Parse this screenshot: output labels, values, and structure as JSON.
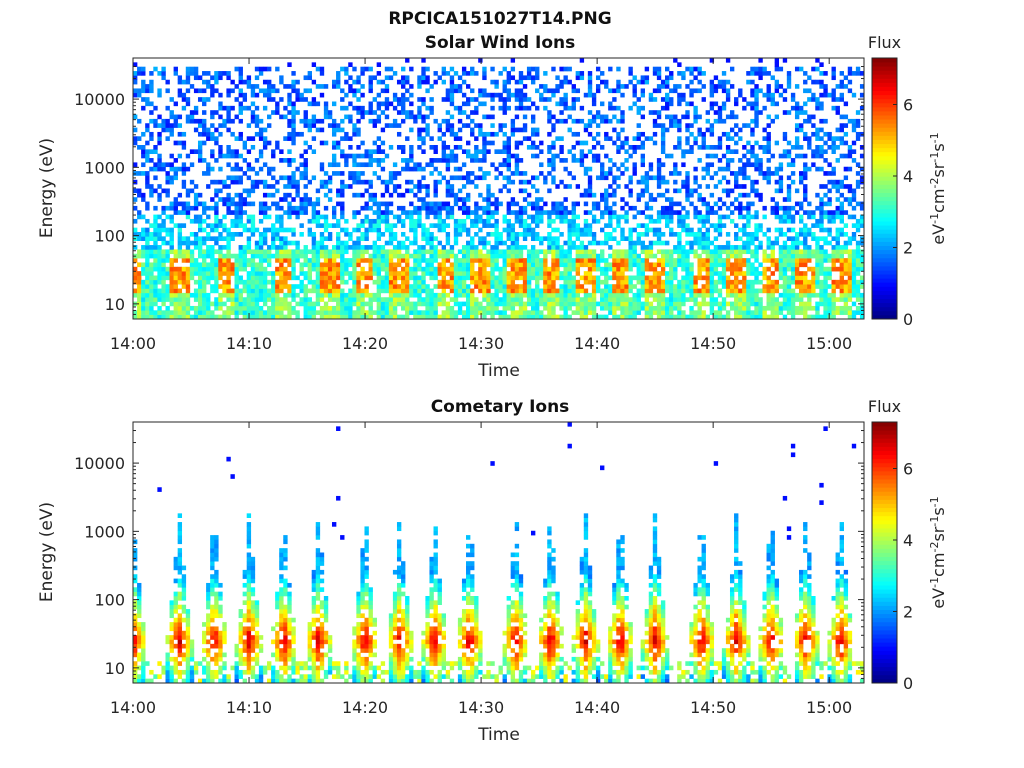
{
  "figure": {
    "title": "RPCICA151027T14.PNG"
  },
  "colorbar": {
    "label": "Flux",
    "unit_parts": [
      "eV",
      "-1",
      "cm",
      "-2",
      "sr",
      "-1",
      "s",
      "-1"
    ],
    "range": [
      0,
      7.3
    ],
    "ticks": [
      "0",
      "2",
      "4",
      "6"
    ],
    "colormap": "jet"
  },
  "chart_data": [
    {
      "type": "heatmap",
      "title": "Solar Wind Ions",
      "xlabel": "Time",
      "ylabel": "Energy (eV)",
      "x_ticks": [
        "14:00",
        "14:10",
        "14:20",
        "14:30",
        "14:40",
        "14:50",
        "15:00"
      ],
      "x_range": [
        "14:00",
        "15:03"
      ],
      "y_ticks": [
        "10",
        "100",
        "1000",
        "10000"
      ],
      "y_range": [
        6,
        40000
      ],
      "y_scale": "log",
      "description_values": {
        "low_energy_band_eV": [
          6,
          60
        ],
        "low_energy_flux_range": [
          2.5,
          5.5
        ],
        "high_energy_band_eV": [
          100,
          30000
        ],
        "high_energy_flux_range": [
          1.0,
          2.2
        ],
        "burst_times": [
          "14:00",
          "14:04",
          "14:08",
          "14:13",
          "14:17",
          "14:20",
          "14:23",
          "14:27",
          "14:30",
          "14:33",
          "14:36",
          "14:39",
          "14:42",
          "14:45",
          "14:49",
          "14:52",
          "14:55",
          "14:58",
          "15:01"
        ]
      }
    },
    {
      "type": "heatmap",
      "title": "Cometary Ions",
      "xlabel": "Time",
      "ylabel": "Energy (eV)",
      "x_ticks": [
        "14:00",
        "14:10",
        "14:20",
        "14:30",
        "14:40",
        "14:50",
        "15:00"
      ],
      "x_range": [
        "14:00",
        "15:03"
      ],
      "y_ticks": [
        "10",
        "100",
        "1000",
        "10000"
      ],
      "y_range": [
        6,
        40000
      ],
      "y_scale": "log",
      "description_values": {
        "burst_peak_energy_eV": [
          15,
          40
        ],
        "burst_peak_flux": 6.5,
        "burst_times": [
          "14:00",
          "14:04",
          "14:07",
          "14:10",
          "14:13",
          "14:16",
          "14:20",
          "14:23",
          "14:26",
          "14:29",
          "14:33",
          "14:36",
          "14:39",
          "14:42",
          "14:45",
          "14:49",
          "14:52",
          "14:55",
          "14:58",
          "15:01"
        ]
      }
    }
  ]
}
